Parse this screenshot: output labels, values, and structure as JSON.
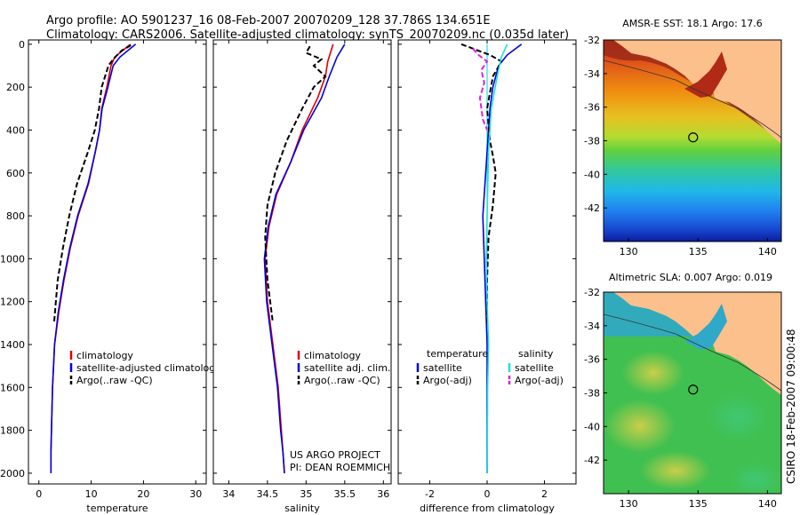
{
  "header": {
    "line1": "Argo profile: AO 5901237_16 08-Feb-2007 20070209_128 37.786S 134.651E",
    "line2": "Climatology: CARS2006. Satellite-adjusted climatology: synTS_20070209.nc (0.035d later)"
  },
  "side_label": "CSIRO 18-Feb-2007 09:00:48",
  "colors": {
    "climatology": "#e00000",
    "satellite": "#0000e0",
    "argo": "#000000",
    "cyan": "#20e0e0",
    "magenta": "#e020e0",
    "land": "#fcc08c"
  },
  "chart_data": [
    {
      "type": "line",
      "id": "temperature",
      "xlabel": "temperature",
      "ylabel": "",
      "xlim": [
        -2,
        32
      ],
      "ylim": [
        2050,
        -20
      ],
      "xticks": [
        0,
        10,
        20,
        30
      ],
      "yticks": [
        0,
        200,
        400,
        600,
        800,
        1000,
        1200,
        1400,
        1600,
        1800,
        2000
      ],
      "legend": {
        "position": "lower-right",
        "entries": [
          "climatology",
          "satellite-adjusted climatology",
          "Argo(..raw -QC)"
        ]
      },
      "series": [
        {
          "name": "climatology",
          "style": "solid",
          "color": "#e00000",
          "x": [
            17.5,
            14.5,
            13.8,
            13.0,
            12.0,
            11.6,
            10.8,
            9.5,
            7.5,
            6.0,
            4.8,
            3.8,
            3.0,
            2.6,
            2.4,
            2.3,
            2.3
          ],
          "y": [
            0,
            60,
            100,
            200,
            300,
            400,
            500,
            650,
            800,
            950,
            1100,
            1250,
            1400,
            1600,
            1800,
            1900,
            2000
          ]
        },
        {
          "name": "satellite-adjusted climatology",
          "style": "solid",
          "color": "#0000e0",
          "x": [
            18.5,
            15.5,
            14.2,
            13.2,
            12.1,
            11.6,
            10.8,
            9.4,
            7.4,
            5.9,
            4.7,
            3.7,
            3.0,
            2.6,
            2.4,
            2.3,
            2.3
          ],
          "y": [
            0,
            60,
            100,
            200,
            300,
            400,
            500,
            650,
            800,
            950,
            1100,
            1250,
            1400,
            1600,
            1800,
            1900,
            2000
          ]
        },
        {
          "name": "Argo(..raw -QC)",
          "style": "dashed",
          "color": "#000000",
          "x": [
            17.6,
            15.8,
            14.6,
            13.9,
            13.3,
            12.0,
            11.5,
            10.7,
            9.4,
            7.3,
            5.8,
            4.6,
            3.6,
            2.9
          ],
          "y": [
            5,
            30,
            60,
            80,
            100,
            200,
            300,
            400,
            500,
            650,
            800,
            950,
            1100,
            1300
          ]
        }
      ]
    },
    {
      "type": "line",
      "id": "salinity",
      "xlabel": "salinity",
      "ylabel": "",
      "xlim": [
        33.8,
        36.1
      ],
      "ylim": [
        2050,
        -20
      ],
      "xticks": [
        34,
        34.5,
        35,
        35.5,
        36
      ],
      "legend": {
        "position": "lower-right",
        "entries": [
          "climatology",
          "satellite adj. clim.",
          "Argo(..raw -QC)"
        ]
      },
      "annotation": [
        "US ARGO PROJECT",
        "PI: DEAN ROEMMICH"
      ],
      "series": [
        {
          "name": "climatology",
          "style": "solid",
          "color": "#e00000",
          "x": [
            35.35,
            35.28,
            35.25,
            35.15,
            34.95,
            34.8,
            34.62,
            34.52,
            34.47,
            34.5,
            34.57,
            34.64,
            34.68,
            34.7,
            34.72
          ],
          "y": [
            0,
            80,
            150,
            250,
            400,
            550,
            700,
            850,
            1000,
            1200,
            1400,
            1600,
            1800,
            1900,
            2000
          ]
        },
        {
          "name": "satellite adj. clim.",
          "style": "solid",
          "color": "#0000e0",
          "x": [
            35.5,
            35.4,
            35.3,
            35.2,
            34.97,
            34.8,
            34.61,
            34.51,
            34.46,
            34.49,
            34.56,
            34.63,
            34.67,
            34.7,
            34.72
          ],
          "y": [
            0,
            60,
            150,
            250,
            400,
            550,
            700,
            850,
            1000,
            1200,
            1400,
            1600,
            1800,
            1900,
            2000
          ]
        },
        {
          "name": "Argo(..raw -QC)",
          "style": "dashed",
          "color": "#000000",
          "x": [
            35.05,
            35.0,
            35.2,
            35.1,
            35.25,
            35.1,
            34.95,
            34.75,
            34.6,
            34.5,
            34.47,
            34.5,
            34.57
          ],
          "y": [
            10,
            40,
            70,
            100,
            150,
            200,
            300,
            450,
            600,
            750,
            900,
            1100,
            1300
          ]
        }
      ]
    },
    {
      "type": "line",
      "id": "difference",
      "xlabel": "difference from climatology",
      "ylabel": "",
      "xlim": [
        -3.1,
        3.1
      ],
      "ylim": [
        2050,
        -20
      ],
      "xticks": [
        -2,
        0,
        2
      ],
      "legend": {
        "position": "lower-right",
        "entries": [
          "temperature",
          "satellite",
          "Argo(-adj)",
          "salinity",
          "satellite",
          "Argo(-adj)"
        ]
      },
      "series": [
        {
          "name": "temperature satellite",
          "style": "solid",
          "color": "#0000e0",
          "x": [
            1.2,
            0.7,
            0.4,
            0.2,
            0.1,
            0.05,
            -0.05,
            -0.15,
            -0.1,
            -0.05,
            0.0,
            0.0,
            0.0
          ],
          "y": [
            0,
            50,
            100,
            200,
            300,
            400,
            600,
            800,
            1000,
            1200,
            1400,
            1600,
            2000
          ]
        },
        {
          "name": "temperature Argo(-adj)",
          "style": "dashed",
          "color": "#000000",
          "x": [
            -0.9,
            -0.5,
            0.1,
            0.5,
            0.2,
            0.0,
            0.1,
            0.2,
            0.3,
            0.2,
            0.05,
            0.0,
            0.0,
            0.0
          ],
          "y": [
            0,
            20,
            50,
            80,
            150,
            300,
            450,
            520,
            600,
            750,
            900,
            1100,
            1250,
            1300
          ]
        },
        {
          "name": "salinity satellite",
          "style": "solid",
          "color": "#20e0e0",
          "x": [
            0.7,
            0.5,
            0.35,
            0.15,
            0.05,
            0.0,
            -0.03,
            0.0,
            0.05,
            0.02,
            0.0
          ],
          "y": [
            0,
            60,
            150,
            300,
            500,
            800,
            1000,
            1200,
            1400,
            1600,
            2000
          ]
        },
        {
          "name": "salinity Argo(-adj)",
          "style": "dashed",
          "color": "#e020e0",
          "x": [
            -0.5,
            -0.3,
            0.0,
            -0.2,
            -0.1,
            -0.25,
            -0.15,
            0.0
          ],
          "y": [
            20,
            50,
            80,
            120,
            180,
            250,
            350,
            400
          ]
        }
      ]
    },
    {
      "type": "heatmap",
      "id": "sst",
      "title": "AMSR-E SST: 18.1  Argo: 17.6",
      "xlim": [
        128.2,
        141
      ],
      "ylim": [
        -44,
        -32
      ],
      "xticks": [
        130,
        135,
        140
      ],
      "yticks": [
        -32,
        -34,
        -36,
        -38,
        -40,
        -42
      ],
      "argo_position": {
        "lon": 134.65,
        "lat": -37.8
      }
    },
    {
      "type": "heatmap",
      "id": "sla",
      "title": "Altimetric SLA: 0.007  Argo: 0.019",
      "xlim": [
        128.2,
        141
      ],
      "ylim": [
        -44,
        -32
      ],
      "xticks": [
        130,
        135,
        140
      ],
      "yticks": [
        -32,
        -34,
        -36,
        -38,
        -40,
        -42
      ],
      "argo_position": {
        "lon": 134.65,
        "lat": -37.8
      }
    }
  ]
}
